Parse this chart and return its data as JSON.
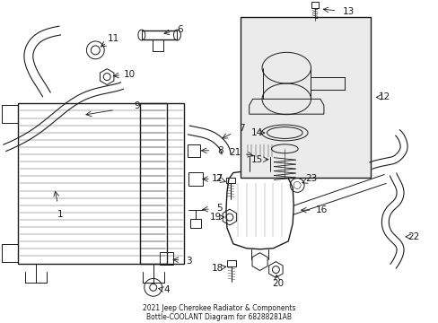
{
  "title_line1": "2021 Jeep Cherokee Radiator & Components",
  "title_line2": "Bottle-COOLANT Diagram for 68288281AB",
  "bg": "#ffffff",
  "lc": "#1a1a1a",
  "fs": 7.5
}
